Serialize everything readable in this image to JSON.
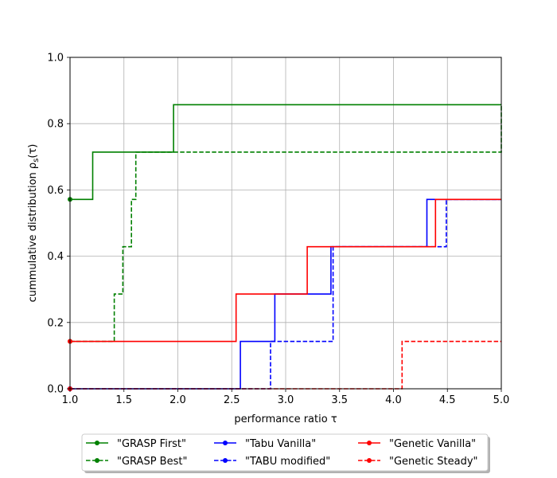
{
  "chart_data": {
    "type": "line",
    "title": "",
    "xlabel": "performance ratio τ",
    "ylabel": "cummulative distribution ρ_s(τ)",
    "xlim": [
      1.0,
      5.0
    ],
    "ylim": [
      0.0,
      1.0
    ],
    "grid": true,
    "legend_position": "bottom-center",
    "legend_columns": 3,
    "x_ticks": [
      "1.0",
      "1.5",
      "2.0",
      "2.5",
      "3.0",
      "3.5",
      "4.0",
      "4.5",
      "5.0"
    ],
    "y_ticks": [
      "0.0",
      "0.2",
      "0.4",
      "0.6",
      "0.8",
      "1.0"
    ],
    "series": [
      {
        "name": "\"GRASP First\"",
        "color": "#008000",
        "dash": "solid",
        "points": [
          [
            1.0,
            0.5714
          ],
          [
            1.21,
            0.5714
          ],
          [
            1.21,
            0.7143
          ],
          [
            1.96,
            0.7143
          ],
          [
            1.96,
            0.8571
          ],
          [
            5.0,
            0.8571
          ]
        ]
      },
      {
        "name": "\"GRASP Best\"",
        "color": "#008000",
        "dash": "dashed",
        "points": [
          [
            1.0,
            0.1429
          ],
          [
            1.41,
            0.1429
          ],
          [
            1.41,
            0.2857
          ],
          [
            1.49,
            0.2857
          ],
          [
            1.49,
            0.4286
          ],
          [
            1.57,
            0.4286
          ],
          [
            1.57,
            0.5714
          ],
          [
            1.61,
            0.5714
          ],
          [
            1.61,
            0.7143
          ],
          [
            5.0,
            0.7143
          ],
          [
            5.0,
            0.8571
          ]
        ]
      },
      {
        "name": "\"Tabu Vanilla\"",
        "color": "#0000ff",
        "dash": "solid",
        "points": [
          [
            1.0,
            0.0
          ],
          [
            2.58,
            0.0
          ],
          [
            2.58,
            0.1429
          ],
          [
            2.9,
            0.1429
          ],
          [
            2.9,
            0.2857
          ],
          [
            3.42,
            0.2857
          ],
          [
            3.42,
            0.4286
          ],
          [
            4.31,
            0.4286
          ],
          [
            4.31,
            0.5714
          ],
          [
            5.0,
            0.5714
          ]
        ]
      },
      {
        "name": "\"TABU modified\"",
        "color": "#0000ff",
        "dash": "dashed",
        "points": [
          [
            1.0,
            0.0
          ],
          [
            2.86,
            0.0
          ],
          [
            2.86,
            0.1429
          ],
          [
            3.44,
            0.1429
          ],
          [
            3.44,
            0.4286
          ],
          [
            4.49,
            0.4286
          ],
          [
            4.49,
            0.5714
          ],
          [
            5.0,
            0.5714
          ]
        ]
      },
      {
        "name": "\"Genetic Vanilla\"",
        "color": "#ff0000",
        "dash": "solid",
        "points": [
          [
            1.0,
            0.1429
          ],
          [
            2.54,
            0.1429
          ],
          [
            2.54,
            0.2857
          ],
          [
            3.2,
            0.2857
          ],
          [
            3.2,
            0.4286
          ],
          [
            4.39,
            0.4286
          ],
          [
            4.39,
            0.5714
          ],
          [
            5.0,
            0.5714
          ]
        ]
      },
      {
        "name": "\"Genetic Steady\"",
        "color": "#ff0000",
        "dash": "dashed",
        "points": [
          [
            1.0,
            0.0
          ],
          [
            4.08,
            0.0
          ],
          [
            4.08,
            0.1429
          ],
          [
            5.0,
            0.1429
          ]
        ]
      }
    ]
  }
}
